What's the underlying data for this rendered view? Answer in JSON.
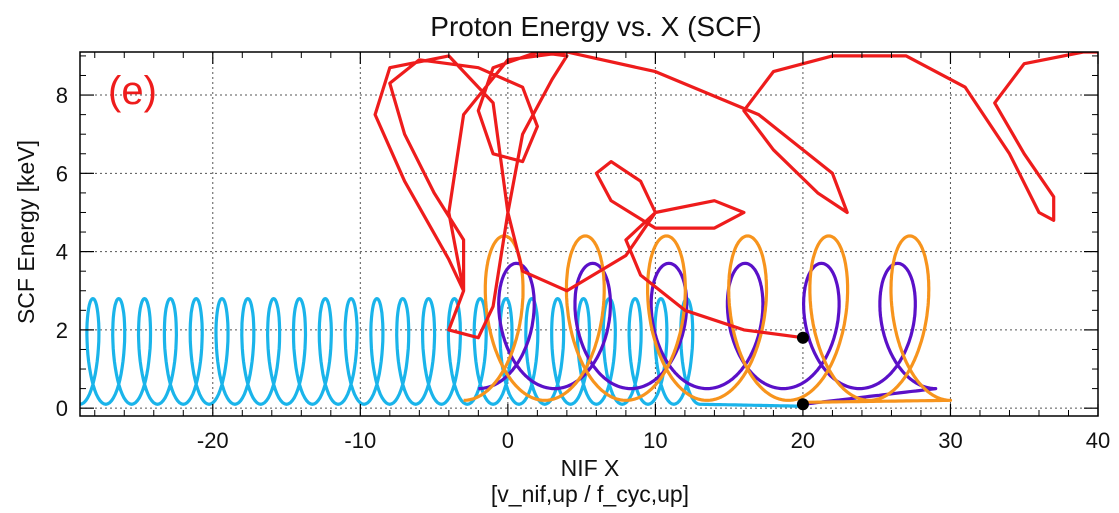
{
  "chart_data": {
    "type": "line",
    "title": "Proton Energy vs. X (SCF)",
    "xlabel": "NIF X",
    "xlabel_sub": "[v_nif,up / f_cyc,up]",
    "ylabel": "SCF Energy [keV]",
    "panel_label": "(e)",
    "xlim": [
      -29,
      40
    ],
    "ylim": [
      -0.2,
      9.1
    ],
    "x_ticks": [
      -20,
      -10,
      0,
      10,
      20,
      30,
      40
    ],
    "y_ticks": [
      0,
      2,
      4,
      6,
      8
    ],
    "grid": true,
    "legend": "none",
    "series": [
      {
        "color": "#1ab4ea",
        "kind": "gyration",
        "x_start": -29,
        "x_end": 13,
        "loops": 24,
        "energy_min": 0.1,
        "energy_max": 2.8,
        "end_x": 20,
        "end_energy": 0.05
      },
      {
        "color": "#5a10c8",
        "kind": "gyration",
        "x_start": -2,
        "x_end": 29,
        "loops": 6,
        "energy_min": 0.5,
        "energy_max": 3.7,
        "end_x": 20,
        "end_energy": 0.1
      },
      {
        "color": "#f7941d",
        "kind": "gyration",
        "x_start": -3,
        "x_end": 30,
        "loops": 6,
        "energy_min": 0.2,
        "energy_max": 4.4,
        "end_x": 20,
        "end_energy": 0.15
      },
      {
        "color": "#ee1c1c",
        "kind": "path",
        "points": [
          [
            20,
            1.8
          ],
          [
            16,
            2.0
          ],
          [
            12,
            2.5
          ],
          [
            9,
            3.4
          ],
          [
            8,
            4.3
          ],
          [
            10,
            5.0
          ],
          [
            14,
            5.3
          ],
          [
            16,
            5.0
          ],
          [
            14,
            4.6
          ],
          [
            10,
            4.6
          ],
          [
            7,
            5.3
          ],
          [
            6,
            6.0
          ],
          [
            7,
            6.3
          ],
          [
            9,
            5.8
          ],
          [
            10,
            5.0
          ],
          [
            8,
            3.9
          ],
          [
            4,
            3.0
          ],
          [
            1,
            3.5
          ],
          [
            0,
            5.0
          ],
          [
            1,
            7.0
          ],
          [
            3,
            8.4
          ],
          [
            4,
            9.0
          ],
          [
            2,
            9.1
          ],
          [
            -1,
            8.7
          ],
          [
            -2,
            7.6
          ],
          [
            -1,
            6.5
          ],
          [
            1,
            6.3
          ],
          [
            2,
            7.2
          ],
          [
            1,
            8.2
          ],
          [
            -2,
            8.7
          ],
          [
            -6,
            8.9
          ],
          [
            -8,
            8.3
          ],
          [
            -7,
            7.0
          ],
          [
            -5,
            5.5
          ],
          [
            -3,
            4.3
          ],
          [
            -3,
            3.0
          ],
          [
            -4,
            2.0
          ],
          [
            -2,
            1.8
          ],
          [
            -1,
            2.6
          ],
          [
            0,
            5.0
          ],
          [
            -1,
            7.8
          ],
          [
            -4,
            9.0
          ],
          [
            -8,
            8.7
          ],
          [
            -9,
            7.5
          ],
          [
            -7,
            5.8
          ],
          [
            -4,
            3.8
          ],
          [
            -3,
            3.0
          ],
          [
            -4,
            5.0
          ],
          [
            -3,
            7.5
          ],
          [
            0,
            8.9
          ],
          [
            4,
            9.1
          ],
          [
            10,
            8.6
          ],
          [
            17,
            7.5
          ],
          [
            22,
            6.0
          ],
          [
            23,
            5.0
          ],
          [
            21,
            5.5
          ],
          [
            18,
            6.6
          ],
          [
            16,
            7.6
          ],
          [
            18,
            8.6
          ],
          [
            22,
            9.0
          ],
          [
            27,
            9.0
          ],
          [
            31,
            8.2
          ],
          [
            34,
            6.5
          ],
          [
            36,
            5.0
          ],
          [
            37,
            4.8
          ],
          [
            37,
            5.4
          ],
          [
            35,
            6.5
          ],
          [
            33,
            7.8
          ],
          [
            35,
            8.8
          ],
          [
            39,
            9.1
          ],
          [
            40,
            9.1
          ]
        ],
        "end_x": 20,
        "end_energy": 1.8
      }
    ],
    "endpoints": [
      {
        "x": 20,
        "energy": 1.8,
        "color": "#000000"
      },
      {
        "x": 20,
        "energy": 0.1,
        "color": "#000000"
      }
    ]
  }
}
